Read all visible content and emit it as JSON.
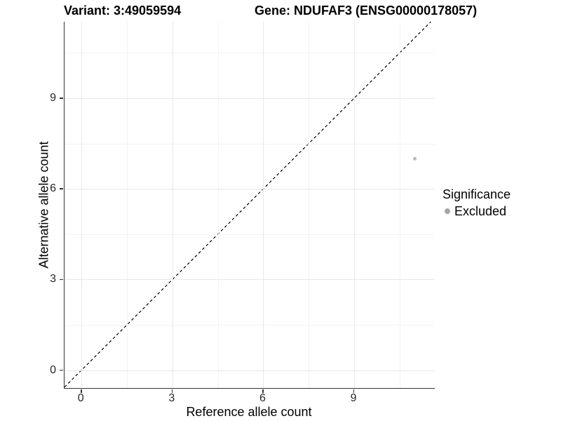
{
  "titles": {
    "variant": "Variant: 3:49059594",
    "gene": "Gene: NDUFAF3 (ENSG00000178057)"
  },
  "axes": {
    "x_label": "Reference allele count",
    "y_label": "Alternative allele count"
  },
  "legend": {
    "title": "Significance",
    "items": [
      {
        "label": "Excluded",
        "color": "#a6a6a6"
      }
    ]
  },
  "colors": {
    "axis_line": "#333333",
    "grid_major": "#e8e8e8",
    "grid_minor": "#f3f3f3",
    "reference_line": "#000000",
    "point": "#bdbdbd",
    "background": "#ffffff"
  },
  "chart_data": {
    "type": "scatter",
    "title": "Variant: 3:49059594 | Gene: NDUFAF3 (ENSG00000178057)",
    "xlabel": "Reference allele count",
    "ylabel": "Alternative allele count",
    "x_domain": [
      -0.56,
      11.66
    ],
    "y_domain": [
      -0.59,
      11.53
    ],
    "x_ticks": [
      0,
      3,
      6,
      9
    ],
    "y_ticks": [
      0,
      3,
      6,
      9
    ],
    "x_minor_ticks": [
      1.5,
      4.5,
      7.5,
      10.5
    ],
    "y_minor_ticks": [
      1.5,
      4.5,
      7.5,
      10.5
    ],
    "grid": true,
    "legend_position": "right",
    "series": [
      {
        "name": "Excluded",
        "color": "#bdbdbd",
        "points": [
          {
            "x": 11,
            "y": 7
          }
        ]
      }
    ],
    "reference_line": {
      "kind": "identity",
      "style": "dashed",
      "color": "#000000",
      "dash": "4 3.5"
    }
  }
}
